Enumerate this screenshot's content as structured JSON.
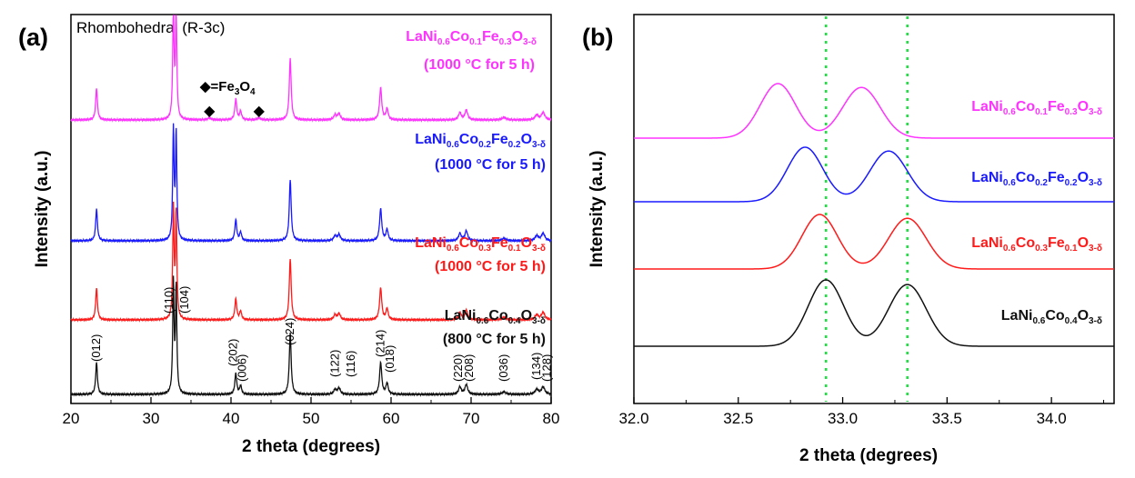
{
  "colors": {
    "pink": "#ff33ff",
    "blue": "#1a1aff",
    "red": "#ff1a1a",
    "black": "#111111",
    "green": "#22dd44"
  },
  "chart_data": [
    {
      "type": "line",
      "panel": "(a)",
      "title": "Rhombohedral (R-3c)",
      "xlabel": "2 theta (degrees)",
      "ylabel": "Intensity (a.u.)",
      "xlim": [
        20,
        80
      ],
      "xticks": [
        "20",
        "30",
        "40",
        "50",
        "60",
        "70",
        "80"
      ],
      "series": [
        {
          "name": "LaNi0.6Co0.4O3-δ",
          "formula": [
            [
              "LaNi",
              false
            ],
            [
              "0.6",
              true
            ],
            [
              "Co",
              false
            ],
            [
              "0.4",
              true
            ],
            [
              "O",
              false
            ],
            [
              "3-δ",
              true
            ]
          ],
          "condition": "(800 °C for 5 h)",
          "color_key": "black"
        },
        {
          "name": "LaNi0.6Co0.3Fe0.1O3-δ",
          "formula": [
            [
              "LaNi",
              false
            ],
            [
              "0.6",
              true
            ],
            [
              "Co",
              false
            ],
            [
              "0.3",
              true
            ],
            [
              "Fe",
              false
            ],
            [
              "0.1",
              true
            ],
            [
              "O",
              false
            ],
            [
              "3-δ",
              true
            ]
          ],
          "condition": "(1000 °C for 5 h)",
          "color_key": "red"
        },
        {
          "name": "LaNi0.6Co0.2Fe0.2O3-δ",
          "formula": [
            [
              "LaNi",
              false
            ],
            [
              "0.6",
              true
            ],
            [
              "Co",
              false
            ],
            [
              "0.2",
              true
            ],
            [
              "Fe",
              false
            ],
            [
              "0.2",
              true
            ],
            [
              "O",
              false
            ],
            [
              "3-δ",
              true
            ]
          ],
          "condition": "(1000 °C for 5 h)",
          "color_key": "blue"
        },
        {
          "name": "LaNi0.6Co0.1Fe0.3O3-δ",
          "formula": [
            [
              "LaNi",
              false
            ],
            [
              "0.6",
              true
            ],
            [
              "Co",
              false
            ],
            [
              "0.1",
              true
            ],
            [
              "Fe",
              false
            ],
            [
              "0.3",
              true
            ],
            [
              "O",
              false
            ],
            [
              "3-δ",
              true
            ]
          ],
          "condition": "(1000 °C for 5 h)",
          "color_key": "pink"
        }
      ],
      "peaks": [
        {
          "x": 23.2,
          "h": 0.26,
          "w": 0.13
        },
        {
          "x": 32.8,
          "h": 0.9,
          "w": 0.1
        },
        {
          "x": 33.15,
          "h": 0.86,
          "w": 0.1
        },
        {
          "x": 40.6,
          "h": 0.17,
          "w": 0.14
        },
        {
          "x": 41.2,
          "h": 0.07,
          "w": 0.14
        },
        {
          "x": 47.4,
          "h": 0.5,
          "w": 0.14
        },
        {
          "x": 53.0,
          "h": 0.04,
          "w": 0.2
        },
        {
          "x": 53.5,
          "h": 0.05,
          "w": 0.2
        },
        {
          "x": 58.7,
          "h": 0.26,
          "w": 0.16
        },
        {
          "x": 59.5,
          "h": 0.09,
          "w": 0.16
        },
        {
          "x": 68.6,
          "h": 0.06,
          "w": 0.2
        },
        {
          "x": 69.4,
          "h": 0.08,
          "w": 0.2
        },
        {
          "x": 74.1,
          "h": 0.02,
          "w": 0.3
        },
        {
          "x": 78.2,
          "h": 0.04,
          "w": 0.25
        },
        {
          "x": 79.0,
          "h": 0.06,
          "w": 0.25
        }
      ],
      "hkl_labels": [
        {
          "text": "(012)",
          "x": 23.2
        },
        {
          "text": "(110)",
          "x": 32.3
        },
        {
          "text": "(104)",
          "x": 34.2
        },
        {
          "text": "(202)",
          "x": 40.3
        },
        {
          "text": "(006)",
          "x": 41.4
        },
        {
          "text": "(024)",
          "x": 47.4
        },
        {
          "text": "(122)",
          "x": 53.0
        },
        {
          "text": "(116)",
          "x": 55.0
        },
        {
          "text": "(214)",
          "x": 58.7
        },
        {
          "text": "(018)",
          "x": 59.9
        },
        {
          "text": "(220)",
          "x": 68.4
        },
        {
          "text": "(208)",
          "x": 69.8
        },
        {
          "text": "(036)",
          "x": 74.1
        },
        {
          "text": "(134)",
          "x": 78.2
        },
        {
          "text": "(128)",
          "x": 79.5
        }
      ],
      "impurity": {
        "marker": "◆",
        "label_prefix": "◆=Fe",
        "label_sub": "3",
        "label_suffix": "O",
        "label_sub2": "4",
        "markers_x": [
          37.3,
          43.5
        ]
      }
    },
    {
      "type": "line",
      "panel": "(b)",
      "xlabel": "2 theta (degrees)",
      "ylabel": "Intensity (a.u.)",
      "xlim": [
        32.0,
        34.3
      ],
      "xticks": [
        "32.0",
        "32.5",
        "33.0",
        "33.5",
        "34.0"
      ],
      "reference_lines_x": [
        32.92,
        33.31
      ],
      "series": [
        {
          "name": "LaNi0.6Co0.4O3-δ",
          "color_key": "black",
          "peak1": 32.92,
          "peak2": 33.31
        },
        {
          "name": "LaNi0.6Co0.3Fe0.1O3-δ",
          "color_key": "red",
          "peak1": 32.89,
          "peak2": 33.31
        },
        {
          "name": "LaNi0.6Co0.2Fe0.2O3-δ",
          "color_key": "blue",
          "peak1": 32.82,
          "peak2": 33.22
        },
        {
          "name": "LaNi0.6Co0.1Fe0.3O3-δ",
          "color_key": "pink",
          "peak1": 32.69,
          "peak2": 33.09
        }
      ]
    }
  ]
}
